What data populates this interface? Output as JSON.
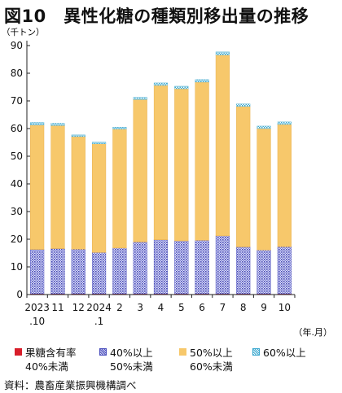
{
  "title": "図10　異性化糖の種類別移出量の推移",
  "source": "資料：農畜産業振興機構調べ",
  "chart_data": {
    "type": "bar",
    "stacked": true,
    "unit_label": "（千トン）",
    "x_unit_label": "（年.月）",
    "ylim": [
      0,
      90
    ],
    "yticks": [
      0,
      10,
      20,
      30,
      40,
      50,
      60,
      70,
      80,
      90
    ],
    "categories": [
      {
        "top": "2023",
        "bottom": ".10"
      },
      {
        "top": "11",
        "bottom": ""
      },
      {
        "top": "12",
        "bottom": ""
      },
      {
        "top": "2024",
        "bottom": ".1"
      },
      {
        "top": "2",
        "bottom": ""
      },
      {
        "top": "3",
        "bottom": ""
      },
      {
        "top": "4",
        "bottom": ""
      },
      {
        "top": "5",
        "bottom": ""
      },
      {
        "top": "6",
        "bottom": ""
      },
      {
        "top": "7",
        "bottom": ""
      },
      {
        "top": "8",
        "bottom": ""
      },
      {
        "top": "9",
        "bottom": ""
      },
      {
        "top": "10",
        "bottom": ""
      }
    ],
    "series": [
      {
        "name": "果糖含有率 40%未満",
        "legend_line1": "果糖含有率",
        "legend_line2": "40%未満",
        "color": "#d81e2a",
        "pattern": "solid",
        "values": [
          0.3,
          0.3,
          0.3,
          0.3,
          0.3,
          0.3,
          0.3,
          0.3,
          0.3,
          0.3,
          0.3,
          0.3,
          0.3
        ]
      },
      {
        "name": "40%以上 50%未満",
        "legend_line1": "40%以上",
        "legend_line2": "50%未満",
        "color": "#5b5fc7",
        "pattern": "dots",
        "values": [
          16.0,
          16.3,
          16.1,
          14.9,
          16.5,
          18.7,
          19.5,
          19.1,
          19.3,
          20.9,
          16.9,
          15.8,
          17.0
        ]
      },
      {
        "name": "50%以上 60%未満",
        "legend_line1": "50%以上",
        "legend_line2": "60%未満",
        "color": "#f7c86b",
        "pattern": "solid",
        "values": [
          45.0,
          44.5,
          40.7,
          39.3,
          43.0,
          51.5,
          55.8,
          55.0,
          57.2,
          65.4,
          50.8,
          43.9,
          44.2
        ]
      },
      {
        "name": "60%以上",
        "legend_line1": "60%以上",
        "legend_line2": "",
        "color": "#4fb8d8",
        "pattern": "checker",
        "values": [
          0.9,
          0.8,
          0.6,
          0.6,
          0.7,
          0.8,
          0.9,
          0.9,
          0.9,
          1.1,
          0.9,
          0.9,
          0.9
        ]
      }
    ],
    "grid": false,
    "legend_position": "bottom"
  }
}
